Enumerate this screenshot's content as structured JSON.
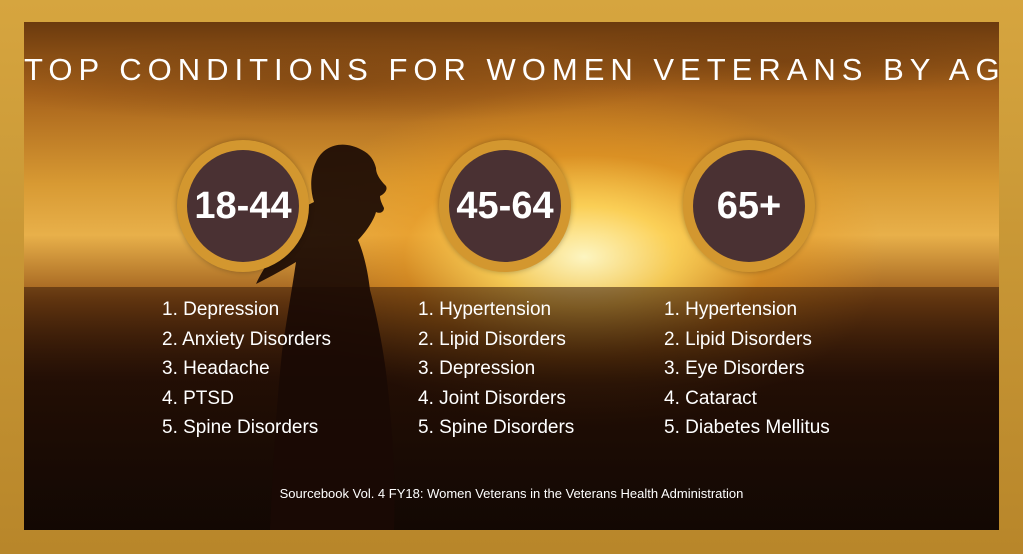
{
  "title": "TOP CONDITIONS FOR WOMEN VETERANS BY AGE",
  "groups": [
    {
      "age": "18-44",
      "conditions": [
        "1. Depression",
        "2. Anxiety Disorders",
        "3. Headache",
        "4. PTSD",
        "5. Spine Disorders"
      ]
    },
    {
      "age": "45-64",
      "conditions": [
        "1. Hypertension",
        "2. Lipid Disorders",
        "3. Depression",
        "4. Joint Disorders",
        "5. Spine Disorders"
      ]
    },
    {
      "age": "65+",
      "conditions": [
        "1. Hypertension",
        "2. Lipid Disorders",
        "3. Eye Disorders",
        "4. Cataract",
        "5. Diabetes Mellitus"
      ]
    }
  ],
  "source": "Sourcebook Vol. 4 FY18: Women Veterans in the Veterans Health Administration",
  "colors": {
    "frame": "#c9962e",
    "badge_ring": "#d3972f",
    "badge_fill": "#4a3133",
    "text": "#ffffff"
  }
}
